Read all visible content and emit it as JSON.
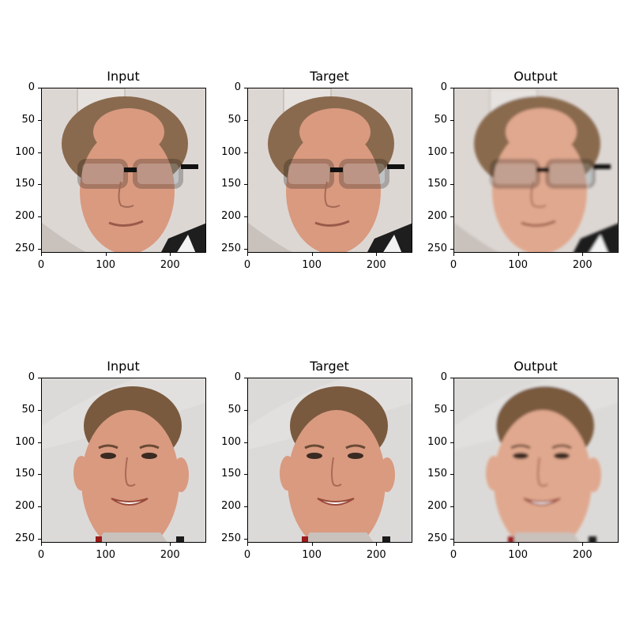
{
  "figure": {
    "rows": [
      {
        "subject": "man-with-glasses",
        "panels": [
          {
            "title": "Input"
          },
          {
            "title": "Target"
          },
          {
            "title": "Output"
          }
        ]
      },
      {
        "subject": "young-man",
        "panels": [
          {
            "title": "Input"
          },
          {
            "title": "Target"
          },
          {
            "title": "Output"
          }
        ]
      }
    ],
    "y_ticks": [
      "0",
      "50",
      "100",
      "150",
      "200",
      "250"
    ],
    "x_ticks": [
      "0",
      "100",
      "200"
    ]
  }
}
